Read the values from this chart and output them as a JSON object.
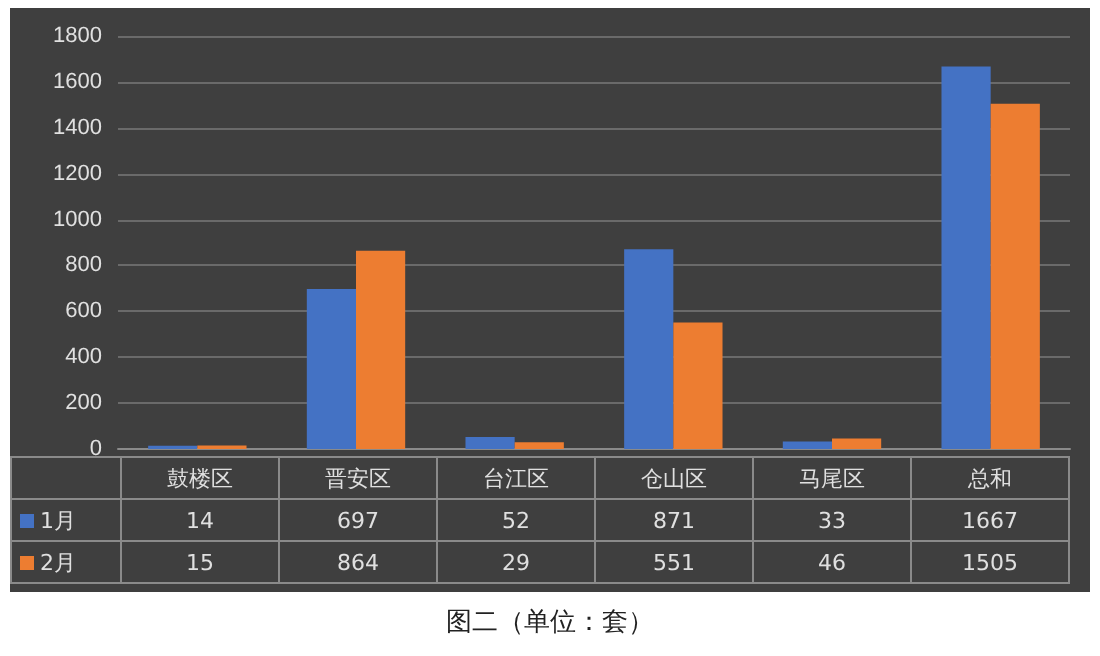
{
  "chart_data": {
    "type": "bar",
    "categories": [
      "鼓楼区",
      "晋安区",
      "台江区",
      "仓山区",
      "马尾区",
      "总和"
    ],
    "series": [
      {
        "name": "1月",
        "color": "#4472c4",
        "values": [
          14,
          697,
          52,
          871,
          33,
          1667
        ]
      },
      {
        "name": "2月",
        "color": "#ed7d31",
        "values": [
          15,
          864,
          29,
          551,
          46,
          1505
        ]
      }
    ],
    "ylim": [
      0,
      1800
    ],
    "yticks": [
      0,
      200,
      400,
      600,
      800,
      1000,
      1200,
      1400,
      1600,
      1800
    ],
    "grid": "y",
    "data_labels": true,
    "legend": "bottom",
    "annotations": [
      "图二（单位：套）"
    ]
  }
}
